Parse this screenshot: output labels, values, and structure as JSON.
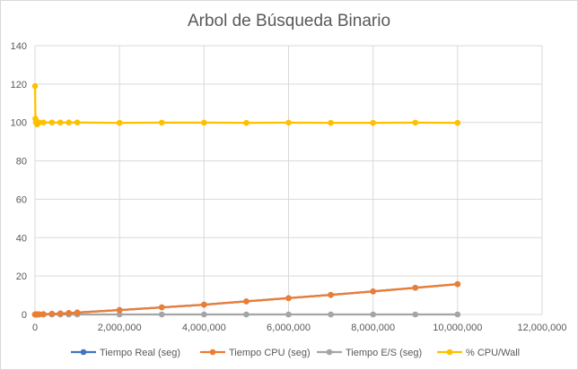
{
  "chart_data": {
    "type": "scatter",
    "title": "Arbol de Búsqueda Binario",
    "xlabel": "",
    "ylabel": "",
    "xlim": [
      0,
      12000000
    ],
    "ylim": [
      0,
      140
    ],
    "x_ticks": [
      0,
      2000000,
      4000000,
      6000000,
      8000000,
      10000000,
      12000000
    ],
    "x_tick_labels": [
      "0",
      "2,000,000",
      "4,000,000",
      "6,000,000",
      "8,000,000",
      "10,000,000",
      "12,000,000"
    ],
    "y_ticks": [
      0,
      20,
      40,
      60,
      80,
      100,
      120,
      140
    ],
    "y_tick_labels": [
      "0",
      "20",
      "40",
      "60",
      "80",
      "100",
      "120",
      "140"
    ],
    "grid": true,
    "legend_position": "bottom",
    "x": [
      1000,
      10000,
      20000,
      50000,
      100000,
      200000,
      400000,
      600000,
      800000,
      1000000,
      2000000,
      3000000,
      4000000,
      5000000,
      6000000,
      7000000,
      8000000,
      9000000,
      10000000
    ],
    "series": [
      {
        "name": "Tiempo Real (seg)",
        "color": "#4472C4",
        "values": [
          0,
          0,
          0.01,
          0.03,
          0.06,
          0.13,
          0.3,
          0.5,
          0.75,
          1.0,
          2.3,
          3.7,
          5.1,
          6.8,
          8.5,
          10.2,
          12.0,
          13.9,
          15.8
        ]
      },
      {
        "name": "Tiempo CPU (seg)",
        "color": "#ED7D31",
        "values": [
          0,
          0,
          0.01,
          0.03,
          0.06,
          0.13,
          0.3,
          0.5,
          0.75,
          1.0,
          2.3,
          3.7,
          5.1,
          6.8,
          8.5,
          10.2,
          12.0,
          13.9,
          15.8
        ]
      },
      {
        "name": "Tiempo E/S (seg)",
        "color": "#A5A5A5",
        "values": [
          0,
          0,
          0,
          0,
          0,
          0,
          0,
          0,
          0,
          0,
          0,
          0,
          0,
          0,
          0,
          0,
          0,
          0,
          0
        ]
      },
      {
        "name": "% CPU/Wall",
        "color": "#FFC000",
        "values": [
          119,
          102,
          100,
          99,
          100,
          100,
          100,
          100,
          100,
          100,
          99.8,
          99.9,
          99.9,
          99.8,
          99.9,
          99.8,
          99.8,
          99.9,
          99.8
        ]
      }
    ]
  }
}
